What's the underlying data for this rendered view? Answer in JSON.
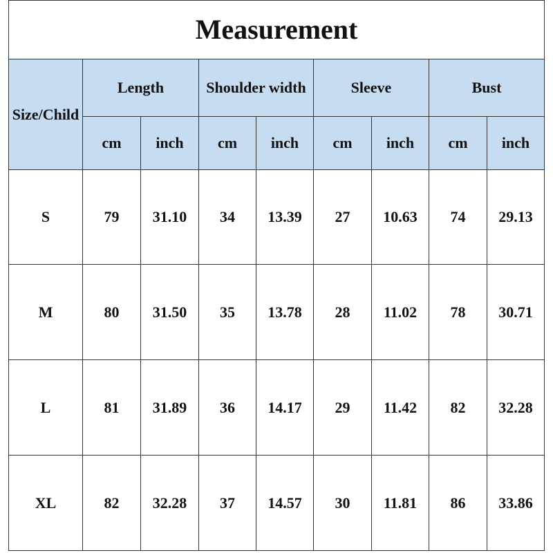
{
  "title": "Measurement",
  "table": {
    "size_header": "Size/Child",
    "groups": [
      "Length",
      "Shoulder width",
      "Sleeve",
      "Bust"
    ],
    "units": [
      "cm",
      "inch",
      "cm",
      "inch",
      "cm",
      "inch",
      "cm",
      "inch"
    ],
    "rows": [
      [
        "S",
        "79",
        "31.10",
        "34",
        "13.39",
        "27",
        "10.63",
        "74",
        "29.13"
      ],
      [
        "M",
        "80",
        "31.50",
        "35",
        "13.78",
        "28",
        "11.02",
        "78",
        "30.71"
      ],
      [
        "L",
        "81",
        "31.89",
        "36",
        "14.17",
        "29",
        "11.42",
        "82",
        "32.28"
      ],
      [
        "XL",
        "82",
        "32.28",
        "37",
        "14.57",
        "30",
        "11.81",
        "86",
        "33.86"
      ]
    ]
  }
}
